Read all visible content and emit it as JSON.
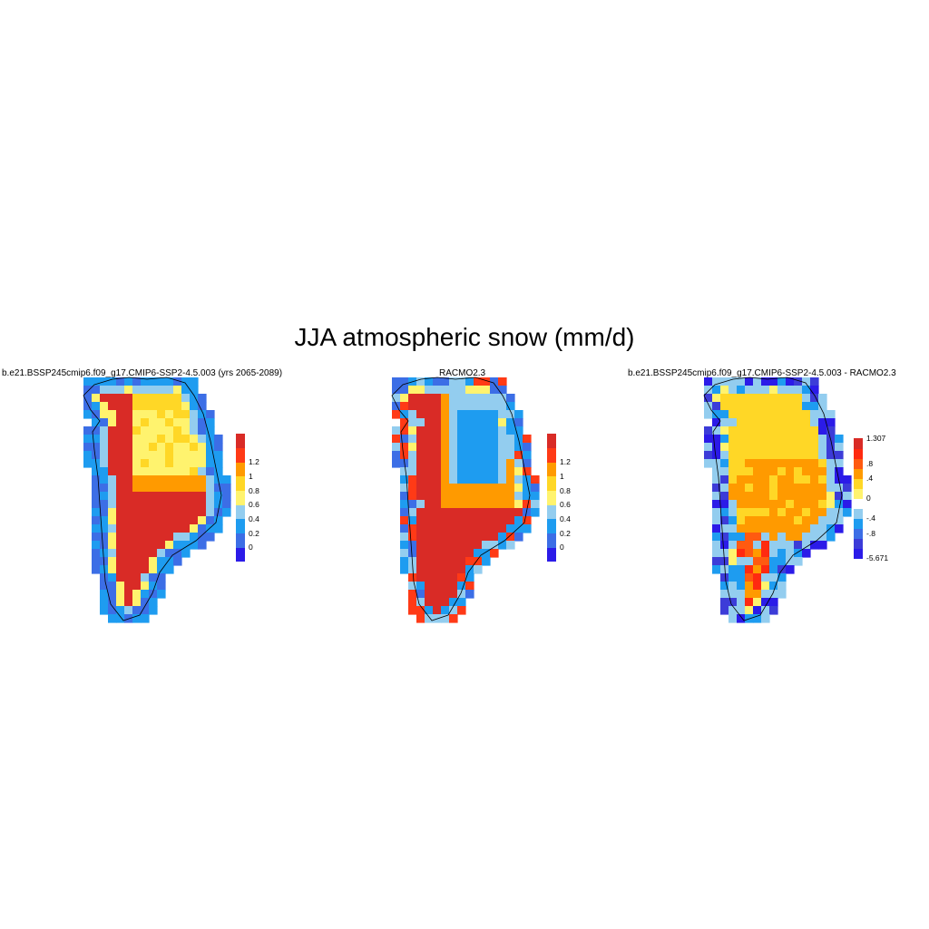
{
  "figure": {
    "title": "JJA atmospheric snow (mm/d)"
  },
  "panels": [
    {
      "id": "model",
      "title": "b.e21.BSSP245cmip6.f09_g17.CMIP6-SSP2-4.5.003 (yrs 2065-2089)",
      "colorbar": {
        "colors": [
          "#2b1be8",
          "#3c6ee6",
          "#1e9cf0",
          "#93cdef",
          "#fff36e",
          "#ffd726",
          "#ff9a00",
          "#ff3a16",
          "#d92b26"
        ],
        "labels": [
          "0",
          "0.2",
          "0.4",
          "0.6",
          "0.8",
          "1",
          "1.2"
        ]
      }
    },
    {
      "id": "racmo",
      "title": "RACMO2.3",
      "colorbar": {
        "colors": [
          "#2b1be8",
          "#3c6ee6",
          "#1e9cf0",
          "#93cdef",
          "#fff36e",
          "#ffd726",
          "#ff9a00",
          "#ff3a16",
          "#d92b26"
        ],
        "labels": [
          "0",
          "0.2",
          "0.4",
          "0.6",
          "0.8",
          "1",
          "1.2"
        ]
      }
    },
    {
      "id": "difference",
      "title": "b.e21.BSSP245cmip6.f09_g17.CMIP6-SSP2-4.5.003 - RACMO2.3",
      "colorbar": {
        "colors": [
          "#2b1be8",
          "#3c3cd8",
          "#3c6ee6",
          "#1e9cf0",
          "#93cdef",
          "#ffffff",
          "#fff36e",
          "#ffd726",
          "#ff9a00",
          "#ff5a10",
          "#ff2a10",
          "#d92b26"
        ],
        "labels": [
          "-5.671",
          "-.8",
          "-.4",
          "0",
          ".4",
          ".8",
          "1.307"
        ]
      }
    }
  ],
  "legend_colors": {
    "deep_red": "#d92b26",
    "orange": "#ff9a00",
    "yellow": "#fff36e",
    "light_blue": "#93cdef",
    "blue": "#1e9cf0",
    "royal_blue": "#3c6ee6",
    "violet": "#2b1be8"
  }
}
